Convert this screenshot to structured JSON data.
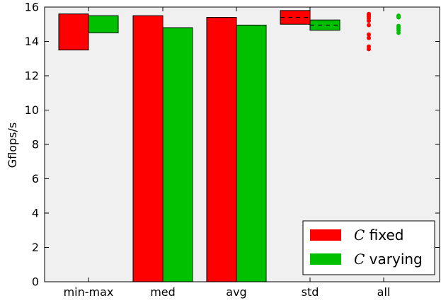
{
  "chart_data": {
    "type": "bar",
    "categories": [
      "min-max",
      "med",
      "avg",
      "std",
      "all"
    ],
    "ylabel": "Gflops/s",
    "ylim": [
      0,
      16
    ],
    "yticks": [
      0,
      2,
      4,
      6,
      8,
      10,
      12,
      14,
      16
    ],
    "grid": false,
    "legend_position": "bottom-right",
    "series": [
      {
        "name": "C fixed",
        "name_italic": "C",
        "name_rest": " fixed",
        "color": "#ff0000",
        "minmax": [
          13.5,
          15.6
        ],
        "med": 15.5,
        "avg": 15.4,
        "std_center": 15.4,
        "std_band": [
          15.0,
          15.8
        ],
        "all": [
          13.55,
          13.7,
          14.2,
          14.4,
          14.95,
          15.2,
          15.35,
          15.45,
          15.5,
          15.55,
          15.6
        ]
      },
      {
        "name": "C varying",
        "name_italic": "C",
        "name_rest": " varying",
        "color": "#00c000",
        "minmax": [
          14.5,
          15.5
        ],
        "med": 14.8,
        "avg": 14.95,
        "std_center": 14.95,
        "std_band": [
          14.65,
          15.25
        ],
        "all": [
          14.5,
          14.65,
          14.75,
          14.85,
          14.9,
          15.4,
          15.45,
          15.5
        ]
      }
    ]
  }
}
